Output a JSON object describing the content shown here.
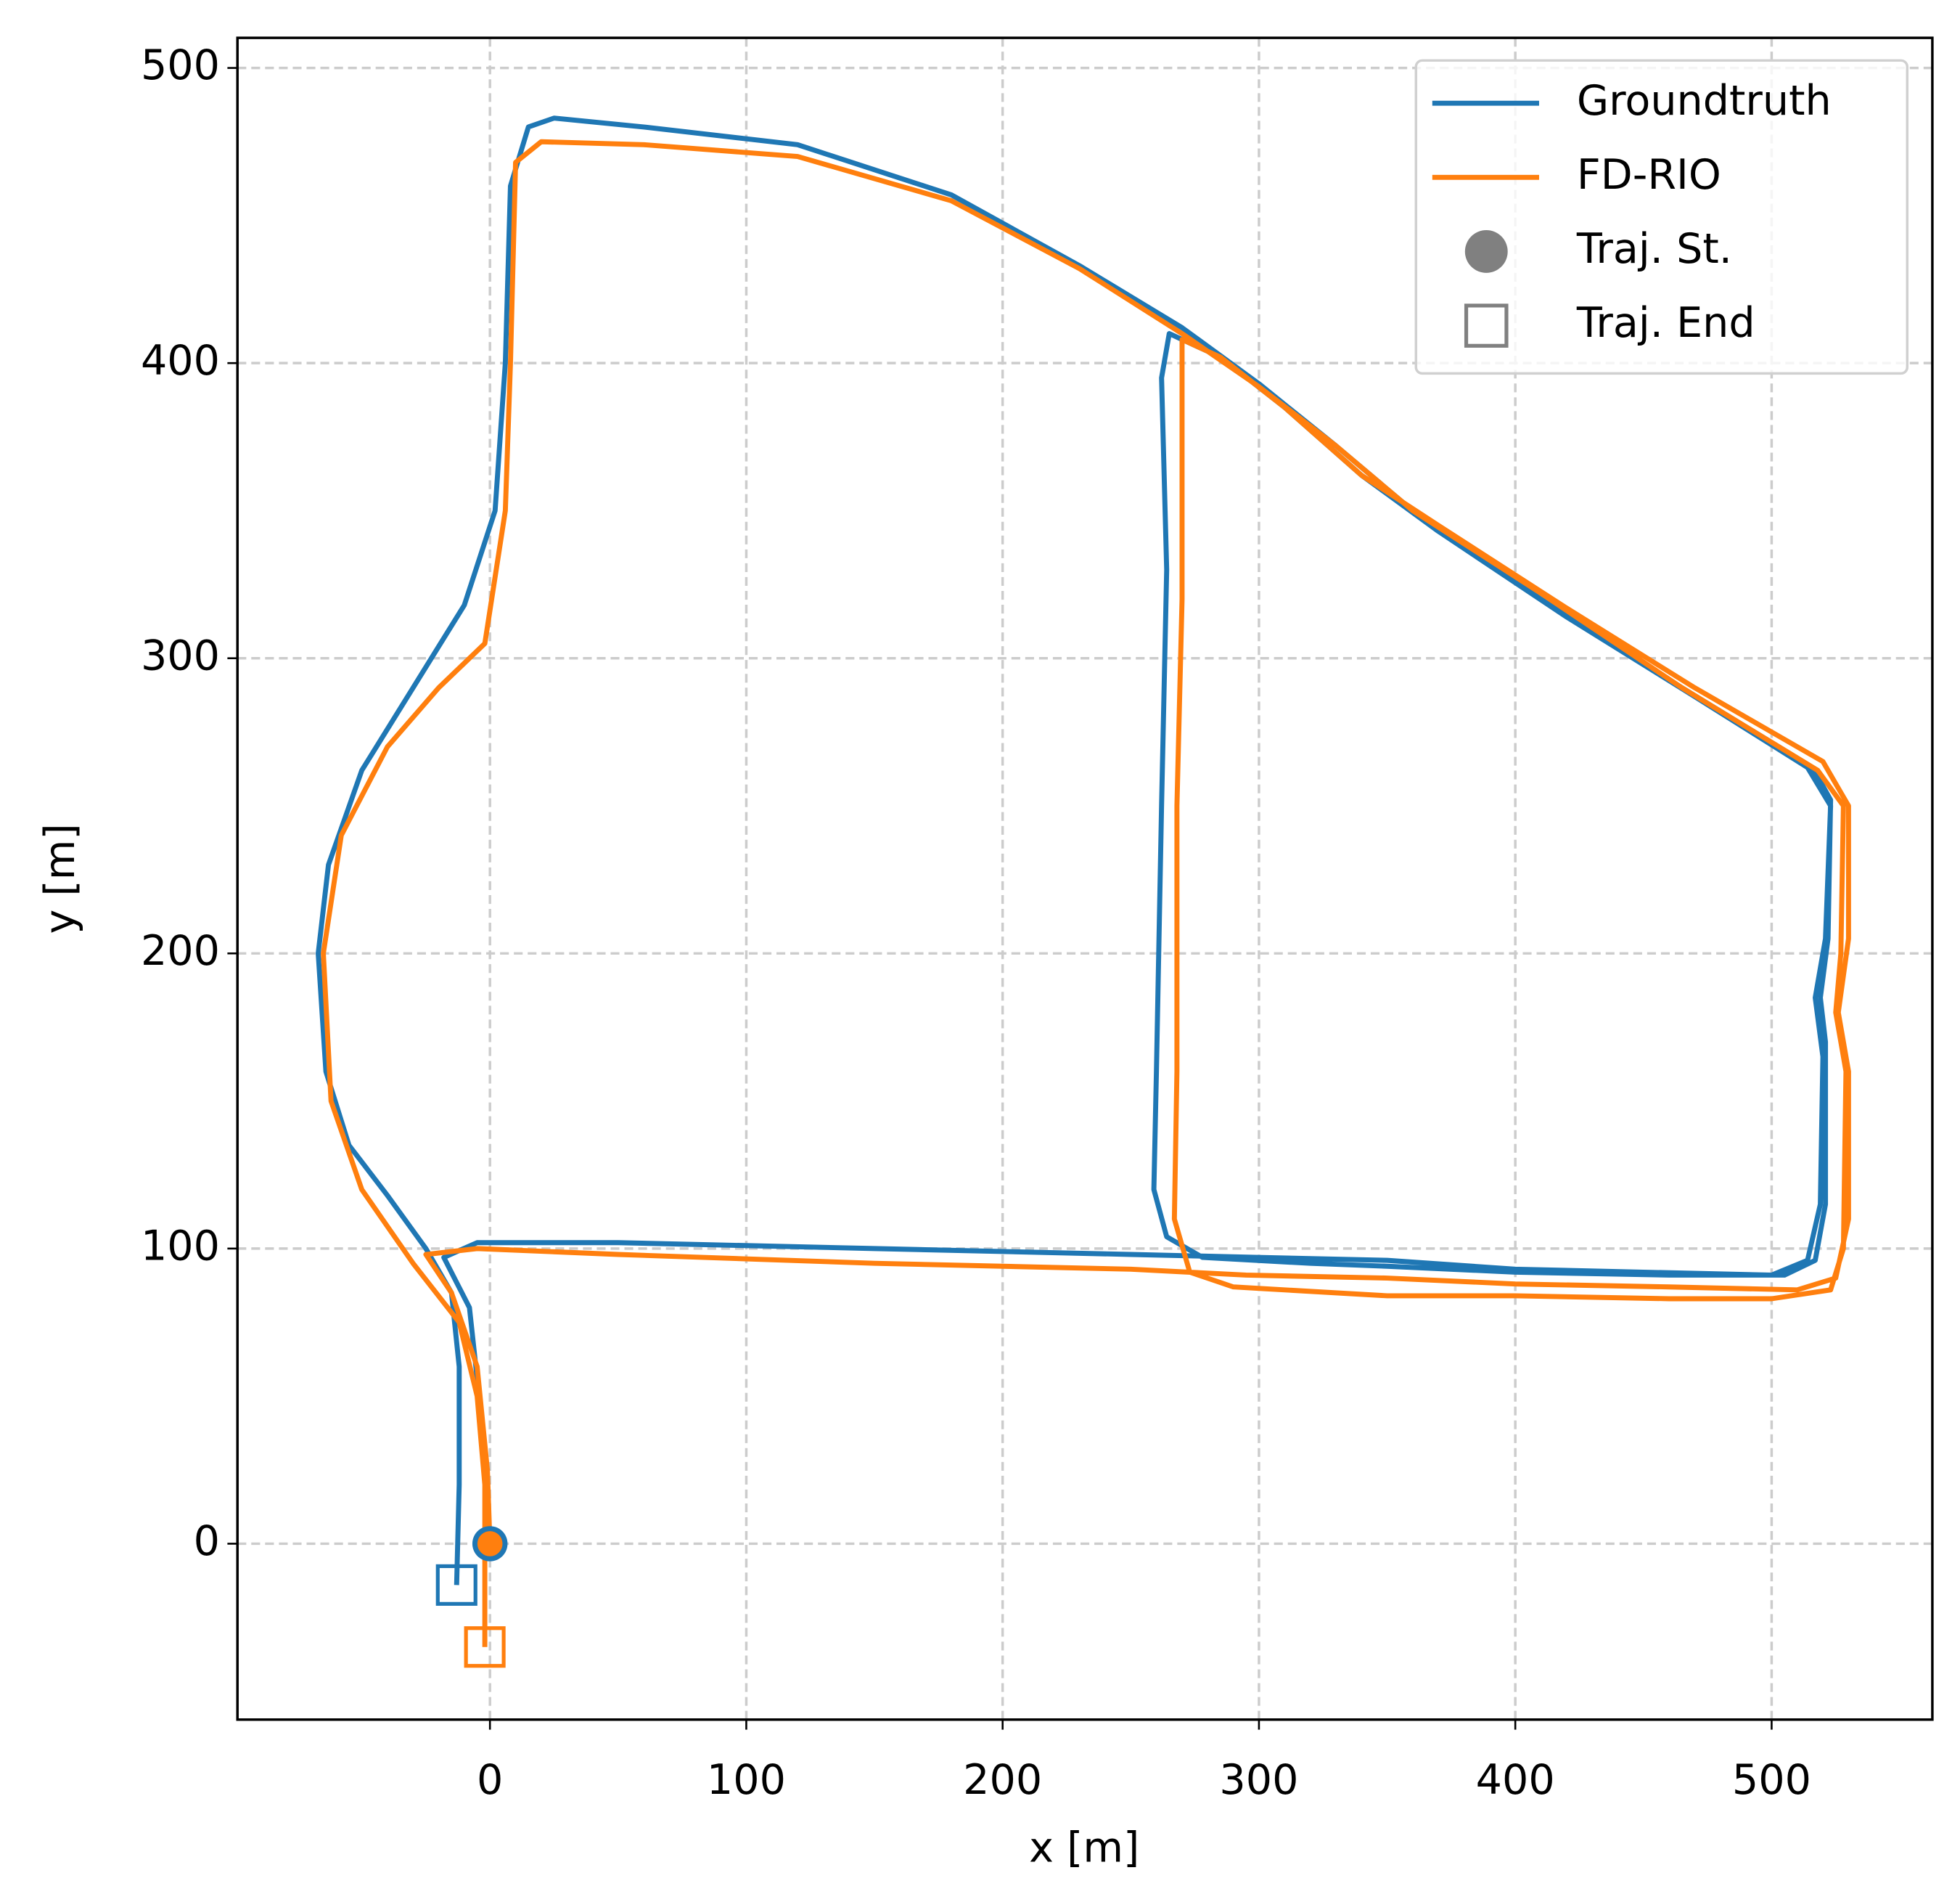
{
  "chart_data": {
    "type": "line",
    "xlabel": "x [m]",
    "ylabel": "y [m]",
    "xlim": [
      -98.5,
      562.7
    ],
    "ylim": [
      -59.6,
      510.2
    ],
    "xticks": [
      0,
      100,
      200,
      300,
      400,
      500
    ],
    "yticks": [
      0,
      100,
      200,
      300,
      400,
      500
    ],
    "grid": true,
    "legend": "upper right",
    "markers": {
      "start_label": "Traj. St.",
      "end_label": "Traj. End",
      "legend_color": "#808080"
    },
    "series": [
      {
        "name": "Groundtruth",
        "color": "#1f77b4",
        "x": [
          0,
          -3,
          -8,
          -18,
          -5,
          50,
          150,
          250,
          300,
          350,
          400,
          450,
          500,
          514,
          519,
          520,
          517,
          521,
          523,
          514,
          470,
          420,
          370,
          340,
          310,
          285,
          265,
          262,
          264,
          262,
          260,
          259,
          264,
          278,
          320,
          350,
          400,
          460,
          505,
          517,
          521,
          521,
          519,
          522,
          523,
          516,
          465,
          410,
          360,
          330,
          300,
          270,
          230,
          180,
          120,
          60,
          25,
          15,
          8,
          6,
          2,
          -10,
          -30,
          -50,
          -63,
          -67,
          -64,
          -55,
          -40,
          -25,
          -15,
          -12,
          -12,
          -13
        ],
        "y": [
          0,
          40,
          80,
          97,
          102,
          102,
          100,
          98,
          97,
          96,
          93,
          92,
          91,
          96,
          115,
          165,
          185,
          205,
          250,
          263,
          287,
          314,
          343,
          362,
          385,
          402,
          410,
          395,
          330,
          250,
          160,
          120,
          104,
          97,
          95,
          94,
          92,
          91,
          91,
          96,
          115,
          170,
          185,
          205,
          252,
          263,
          290,
          320,
          350,
          372,
          393,
          412,
          433,
          457,
          474,
          480,
          483,
          480,
          460,
          400,
          350,
          318,
          290,
          262,
          230,
          200,
          160,
          135,
          118,
          100,
          85,
          60,
          20,
          -14
        ]
      },
      {
        "name": "FD-RIO",
        "color": "#ff7f0e",
        "x": [
          0,
          -1,
          -5,
          -15,
          -25,
          -5,
          50,
          150,
          250,
          295,
          350,
          400,
          460,
          510,
          525,
          530,
          530,
          526,
          530,
          530,
          520,
          470,
          420,
          370,
          340,
          310,
          285,
          270,
          270,
          270,
          268,
          268,
          267,
          273,
          290,
          350,
          400,
          460,
          500,
          523,
          528,
          529,
          525,
          527,
          528,
          518,
          465,
          410,
          360,
          330,
          300,
          270,
          230,
          180,
          120,
          60,
          20,
          10,
          8,
          6,
          -2,
          -20,
          -40,
          -58,
          -65,
          -62,
          -50,
          -30,
          -12,
          -5,
          -2,
          -2
        ],
        "y": [
          0,
          25,
          60,
          85,
          98,
          100,
          98,
          95,
          93,
          91,
          90,
          88,
          87,
          86,
          90,
          110,
          160,
          180,
          205,
          250,
          265,
          290,
          317,
          345,
          362,
          385,
          402,
          408,
          390,
          320,
          250,
          160,
          110,
          92,
          87,
          84,
          84,
          83,
          83,
          86,
          100,
          160,
          180,
          200,
          250,
          262,
          290,
          322,
          350,
          372,
          392,
          410,
          432,
          455,
          470,
          474,
          475,
          468,
          400,
          350,
          305,
          290,
          270,
          240,
          200,
          150,
          120,
          95,
          75,
          50,
          20,
          -35
        ]
      }
    ]
  }
}
